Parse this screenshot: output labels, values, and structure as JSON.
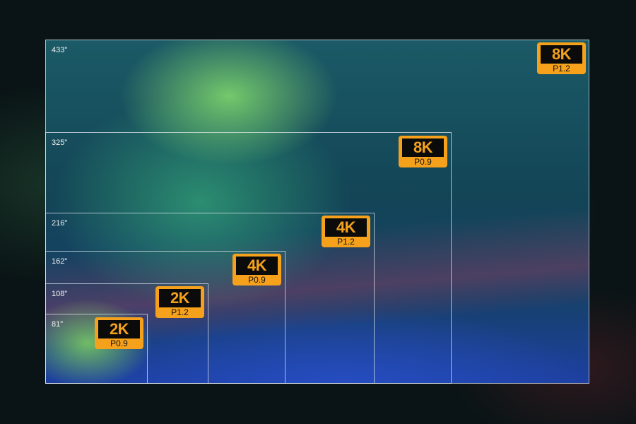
{
  "screens": [
    {
      "size": "433\"",
      "resolution": "8K",
      "pitch": "P1.2"
    },
    {
      "size": "325\"",
      "resolution": "8K",
      "pitch": "P0.9"
    },
    {
      "size": "216\"",
      "resolution": "4K",
      "pitch": "P1.2"
    },
    {
      "size": "162\"",
      "resolution": "4K",
      "pitch": "P0.9"
    },
    {
      "size": "108\"",
      "resolution": "2K",
      "pitch": "P1.2"
    },
    {
      "size": "81\"",
      "resolution": "2K",
      "pitch": "P0.9"
    }
  ],
  "colors": {
    "badge": "#f5a11c",
    "badge_text_bg": "#0b0b0b",
    "outline": "#dce6eb"
  }
}
